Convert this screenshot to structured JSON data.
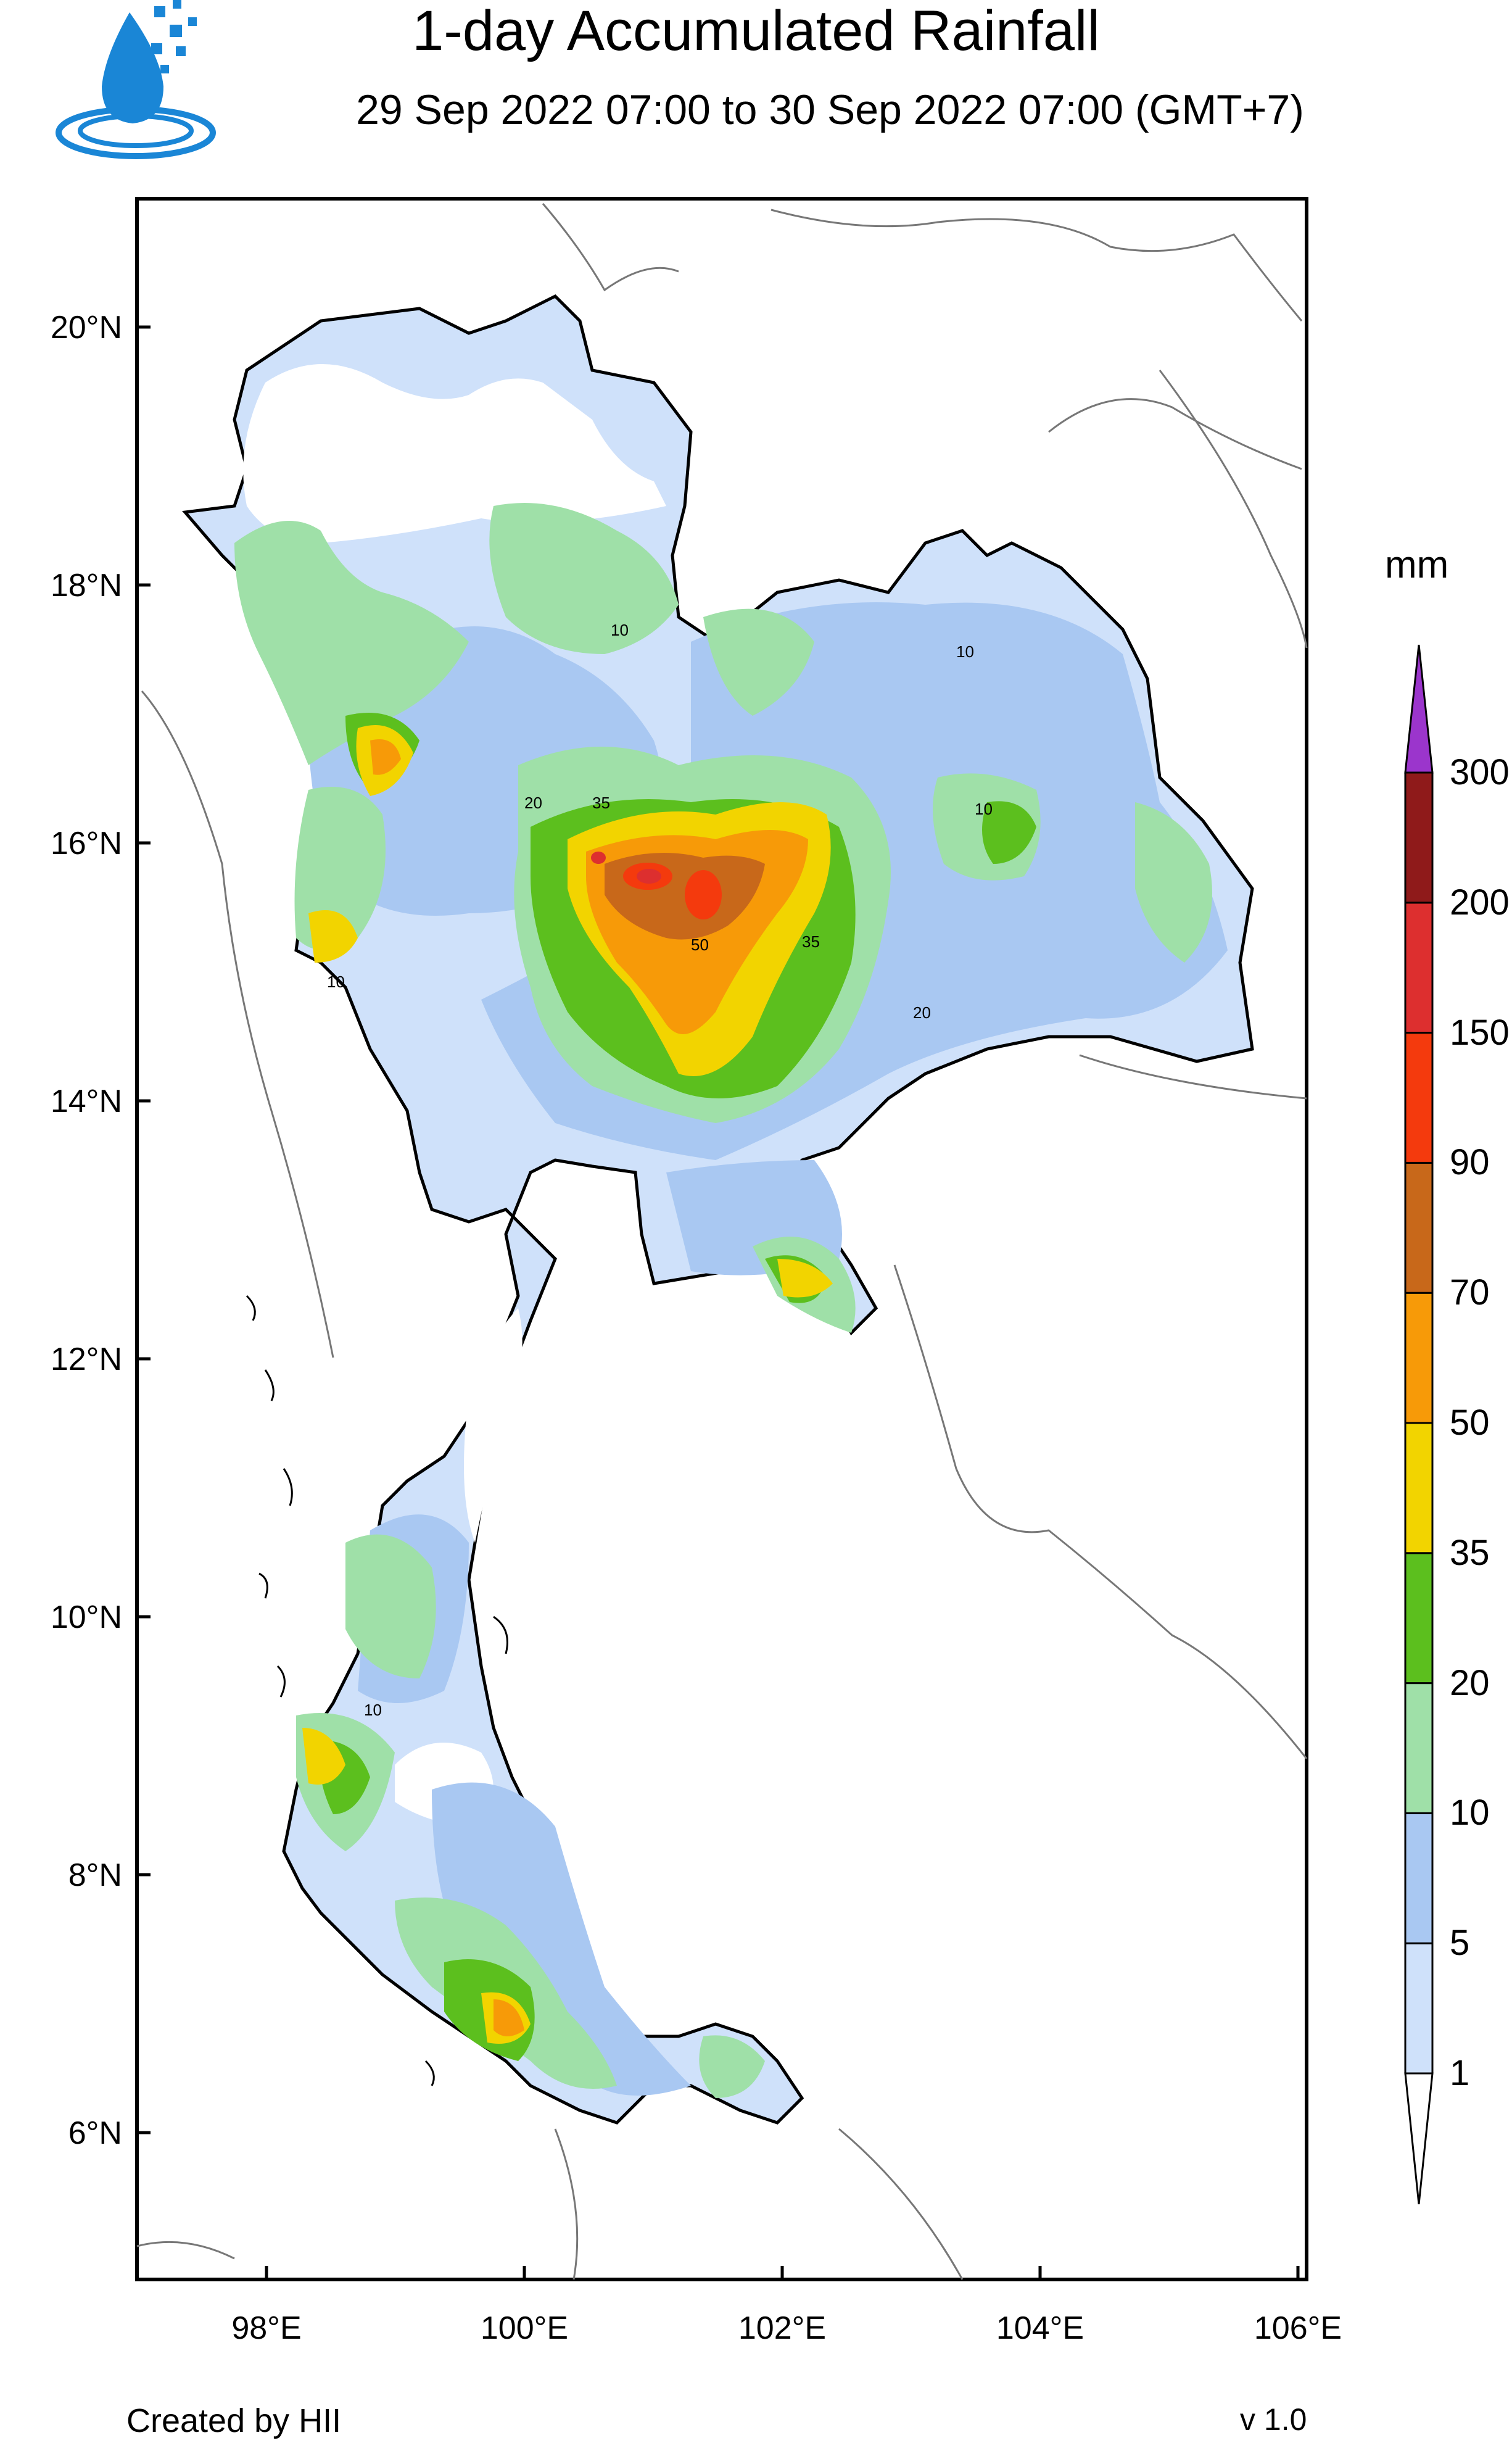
{
  "header": {
    "title": "1-day Accumulated Rainfall",
    "subtitle": "29 Sep 2022 07:00 to 30 Sep 2022 07:00 (GMT+7)"
  },
  "axes": {
    "lat_labels": [
      "20°N",
      "18°N",
      "16°N",
      "14°N",
      "12°N",
      "10°N",
      "8°N",
      "6°N"
    ],
    "lon_labels": [
      "98°E",
      "100°E",
      "102°E",
      "104°E",
      "106°E"
    ]
  },
  "legend": {
    "unit": "mm",
    "levels": [
      "1",
      "5",
      "10",
      "20",
      "35",
      "50",
      "70",
      "90",
      "150",
      "200",
      "300"
    ],
    "colors": [
      "#cfe1fa",
      "#a9c8f2",
      "#9fe0a8",
      "#5cbf1e",
      "#f2d400",
      "#f79a08",
      "#c8681a",
      "#f43a0d",
      "#dd2f2f",
      "#8f1a1a",
      "#9b35cc"
    ]
  },
  "map_labels": [
    "10",
    "10",
    "20",
    "35",
    "50",
    "35",
    "10",
    "10",
    "20",
    "10"
  ],
  "footer": {
    "credit": "Created by HII",
    "version": "v 1.0"
  }
}
